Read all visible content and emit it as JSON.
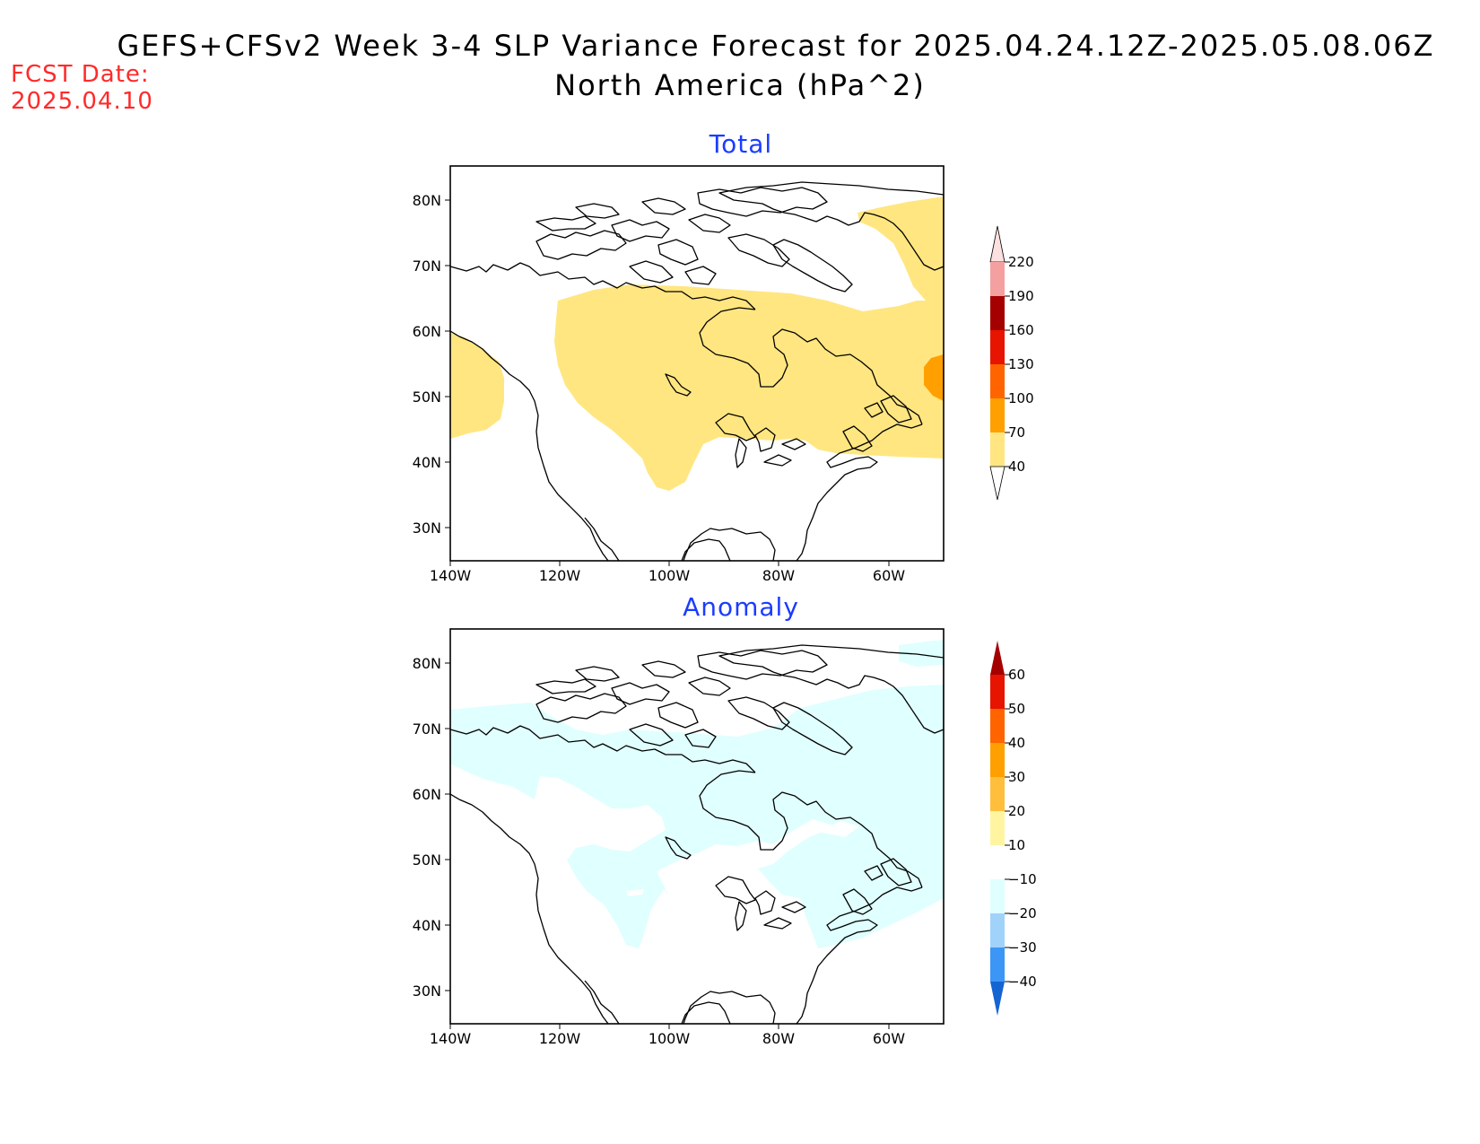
{
  "header": {
    "title_line1": "GEFS+CFSv2 Week 3-4 SLP Variance Forecast for 2025.04.24.12Z-2025.05.08.06Z",
    "title_line2": "North America (hPa^2)",
    "fcst_date_label": "FCST Date:",
    "fcst_date_value": "2025.04.10"
  },
  "panels": {
    "total": {
      "title": "Total",
      "lat_labels": [
        "80N",
        "70N",
        "60N",
        "50N",
        "40N",
        "30N"
      ],
      "lon_labels": [
        "140W",
        "120W",
        "100W",
        "80W",
        "60W"
      ],
      "colorbar": {
        "levels": [
          "40",
          "70",
          "100",
          "130",
          "160",
          "190",
          "220"
        ],
        "colors": [
          "#ffe680",
          "#ffa000",
          "#ff6400",
          "#e61400",
          "#a50000",
          "#f4a0a0",
          "#fde0e0"
        ]
      }
    },
    "anomaly": {
      "title": "Anomaly",
      "lat_labels": [
        "80N",
        "70N",
        "60N",
        "50N",
        "40N",
        "30N"
      ],
      "lon_labels": [
        "140W",
        "120W",
        "100W",
        "80W",
        "60W"
      ],
      "colorbar": {
        "levels": [
          "60",
          "50",
          "40",
          "30",
          "20",
          "10",
          "−10",
          "−20",
          "−30",
          "−40"
        ],
        "colors": [
          "#a50000",
          "#e61400",
          "#ff6400",
          "#ffa000",
          "#ffbe3c",
          "#fff5a0",
          "#ffffff",
          "#e0ffff",
          "#a0d2fa",
          "#3c96f5",
          "#1464d2"
        ]
      }
    }
  }
}
